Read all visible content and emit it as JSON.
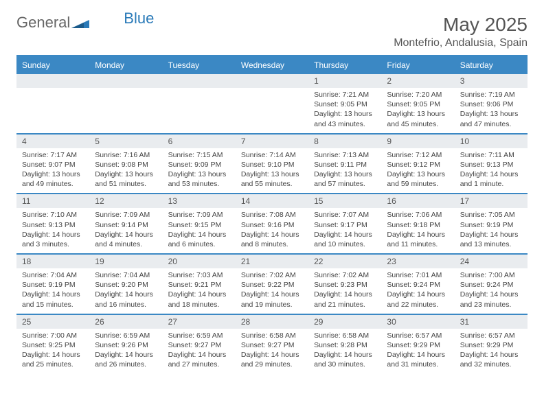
{
  "brand": {
    "name1": "General",
    "name2": "Blue"
  },
  "title": "May 2025",
  "location": "Montefrio, Andalusia, Spain",
  "colors": {
    "header_bg": "#3b88c4",
    "header_text": "#ffffff",
    "daynum_bg": "#e9ecef",
    "border": "#3b88c4",
    "text": "#444444",
    "logo_gray": "#666666",
    "logo_blue": "#2a7ab8"
  },
  "day_headers": [
    "Sunday",
    "Monday",
    "Tuesday",
    "Wednesday",
    "Thursday",
    "Friday",
    "Saturday"
  ],
  "weeks": [
    [
      null,
      null,
      null,
      null,
      {
        "n": "1",
        "sr": "7:21 AM",
        "ss": "9:05 PM",
        "dl": "13 hours and 43 minutes."
      },
      {
        "n": "2",
        "sr": "7:20 AM",
        "ss": "9:05 PM",
        "dl": "13 hours and 45 minutes."
      },
      {
        "n": "3",
        "sr": "7:19 AM",
        "ss": "9:06 PM",
        "dl": "13 hours and 47 minutes."
      }
    ],
    [
      {
        "n": "4",
        "sr": "7:17 AM",
        "ss": "9:07 PM",
        "dl": "13 hours and 49 minutes."
      },
      {
        "n": "5",
        "sr": "7:16 AM",
        "ss": "9:08 PM",
        "dl": "13 hours and 51 minutes."
      },
      {
        "n": "6",
        "sr": "7:15 AM",
        "ss": "9:09 PM",
        "dl": "13 hours and 53 minutes."
      },
      {
        "n": "7",
        "sr": "7:14 AM",
        "ss": "9:10 PM",
        "dl": "13 hours and 55 minutes."
      },
      {
        "n": "8",
        "sr": "7:13 AM",
        "ss": "9:11 PM",
        "dl": "13 hours and 57 minutes."
      },
      {
        "n": "9",
        "sr": "7:12 AM",
        "ss": "9:12 PM",
        "dl": "13 hours and 59 minutes."
      },
      {
        "n": "10",
        "sr": "7:11 AM",
        "ss": "9:13 PM",
        "dl": "14 hours and 1 minute."
      }
    ],
    [
      {
        "n": "11",
        "sr": "7:10 AM",
        "ss": "9:13 PM",
        "dl": "14 hours and 3 minutes."
      },
      {
        "n": "12",
        "sr": "7:09 AM",
        "ss": "9:14 PM",
        "dl": "14 hours and 4 minutes."
      },
      {
        "n": "13",
        "sr": "7:09 AM",
        "ss": "9:15 PM",
        "dl": "14 hours and 6 minutes."
      },
      {
        "n": "14",
        "sr": "7:08 AM",
        "ss": "9:16 PM",
        "dl": "14 hours and 8 minutes."
      },
      {
        "n": "15",
        "sr": "7:07 AM",
        "ss": "9:17 PM",
        "dl": "14 hours and 10 minutes."
      },
      {
        "n": "16",
        "sr": "7:06 AM",
        "ss": "9:18 PM",
        "dl": "14 hours and 11 minutes."
      },
      {
        "n": "17",
        "sr": "7:05 AM",
        "ss": "9:19 PM",
        "dl": "14 hours and 13 minutes."
      }
    ],
    [
      {
        "n": "18",
        "sr": "7:04 AM",
        "ss": "9:19 PM",
        "dl": "14 hours and 15 minutes."
      },
      {
        "n": "19",
        "sr": "7:04 AM",
        "ss": "9:20 PM",
        "dl": "14 hours and 16 minutes."
      },
      {
        "n": "20",
        "sr": "7:03 AM",
        "ss": "9:21 PM",
        "dl": "14 hours and 18 minutes."
      },
      {
        "n": "21",
        "sr": "7:02 AM",
        "ss": "9:22 PM",
        "dl": "14 hours and 19 minutes."
      },
      {
        "n": "22",
        "sr": "7:02 AM",
        "ss": "9:23 PM",
        "dl": "14 hours and 21 minutes."
      },
      {
        "n": "23",
        "sr": "7:01 AM",
        "ss": "9:24 PM",
        "dl": "14 hours and 22 minutes."
      },
      {
        "n": "24",
        "sr": "7:00 AM",
        "ss": "9:24 PM",
        "dl": "14 hours and 23 minutes."
      }
    ],
    [
      {
        "n": "25",
        "sr": "7:00 AM",
        "ss": "9:25 PM",
        "dl": "14 hours and 25 minutes."
      },
      {
        "n": "26",
        "sr": "6:59 AM",
        "ss": "9:26 PM",
        "dl": "14 hours and 26 minutes."
      },
      {
        "n": "27",
        "sr": "6:59 AM",
        "ss": "9:27 PM",
        "dl": "14 hours and 27 minutes."
      },
      {
        "n": "28",
        "sr": "6:58 AM",
        "ss": "9:27 PM",
        "dl": "14 hours and 29 minutes."
      },
      {
        "n": "29",
        "sr": "6:58 AM",
        "ss": "9:28 PM",
        "dl": "14 hours and 30 minutes."
      },
      {
        "n": "30",
        "sr": "6:57 AM",
        "ss": "9:29 PM",
        "dl": "14 hours and 31 minutes."
      },
      {
        "n": "31",
        "sr": "6:57 AM",
        "ss": "9:29 PM",
        "dl": "14 hours and 32 minutes."
      }
    ]
  ],
  "labels": {
    "sunrise": "Sunrise: ",
    "sunset": "Sunset: ",
    "daylight": "Daylight: "
  }
}
